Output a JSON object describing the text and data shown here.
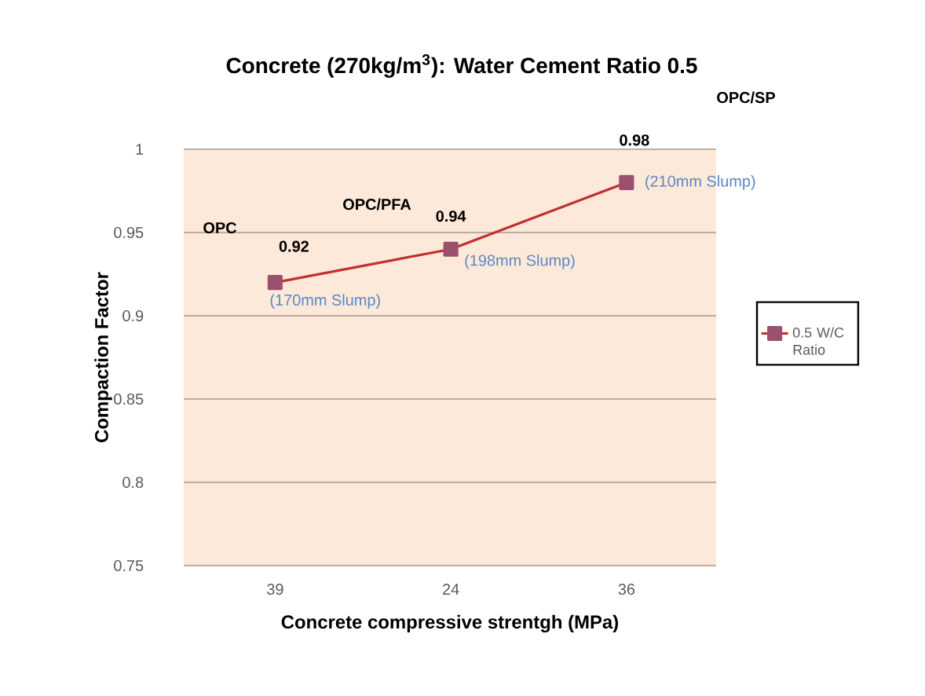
{
  "chart_data": {
    "type": "line",
    "title": "Concrete (270kg/m$^{3}$):  Water Cement Ratio 0.5",
    "xlabel": "Concrete compressive strentgh (MPa)",
    "ylabel": "Compaction  Factor",
    "categories": [
      "39",
      "24",
      "36"
    ],
    "series": [
      {
        "name": "0.5 W/C Ratio",
        "color": "#c0302f",
        "values": [
          0.92,
          0.94,
          0.98
        ]
      }
    ],
    "ylim": [
      0.75,
      1
    ],
    "yticks": [
      0.75,
      0.8,
      0.85,
      0.9,
      0.95,
      1
    ],
    "grid": "y",
    "legend": "right",
    "marker": "square",
    "line_style": "solid",
    "data_labels": true,
    "annotations": [
      "OPC",
      {
        "text": "(170mm Slump)",
        "x": "39",
        "y": 0.92
      },
      "OPC/PFA",
      {
        "text": "(198mm Slump)",
        "x": "24",
        "y": 0.94
      },
      "OPC/SP",
      {
        "text": "(210mm Slump)",
        "x": "36",
        "y": 0.98
      }
    ]
  }
}
